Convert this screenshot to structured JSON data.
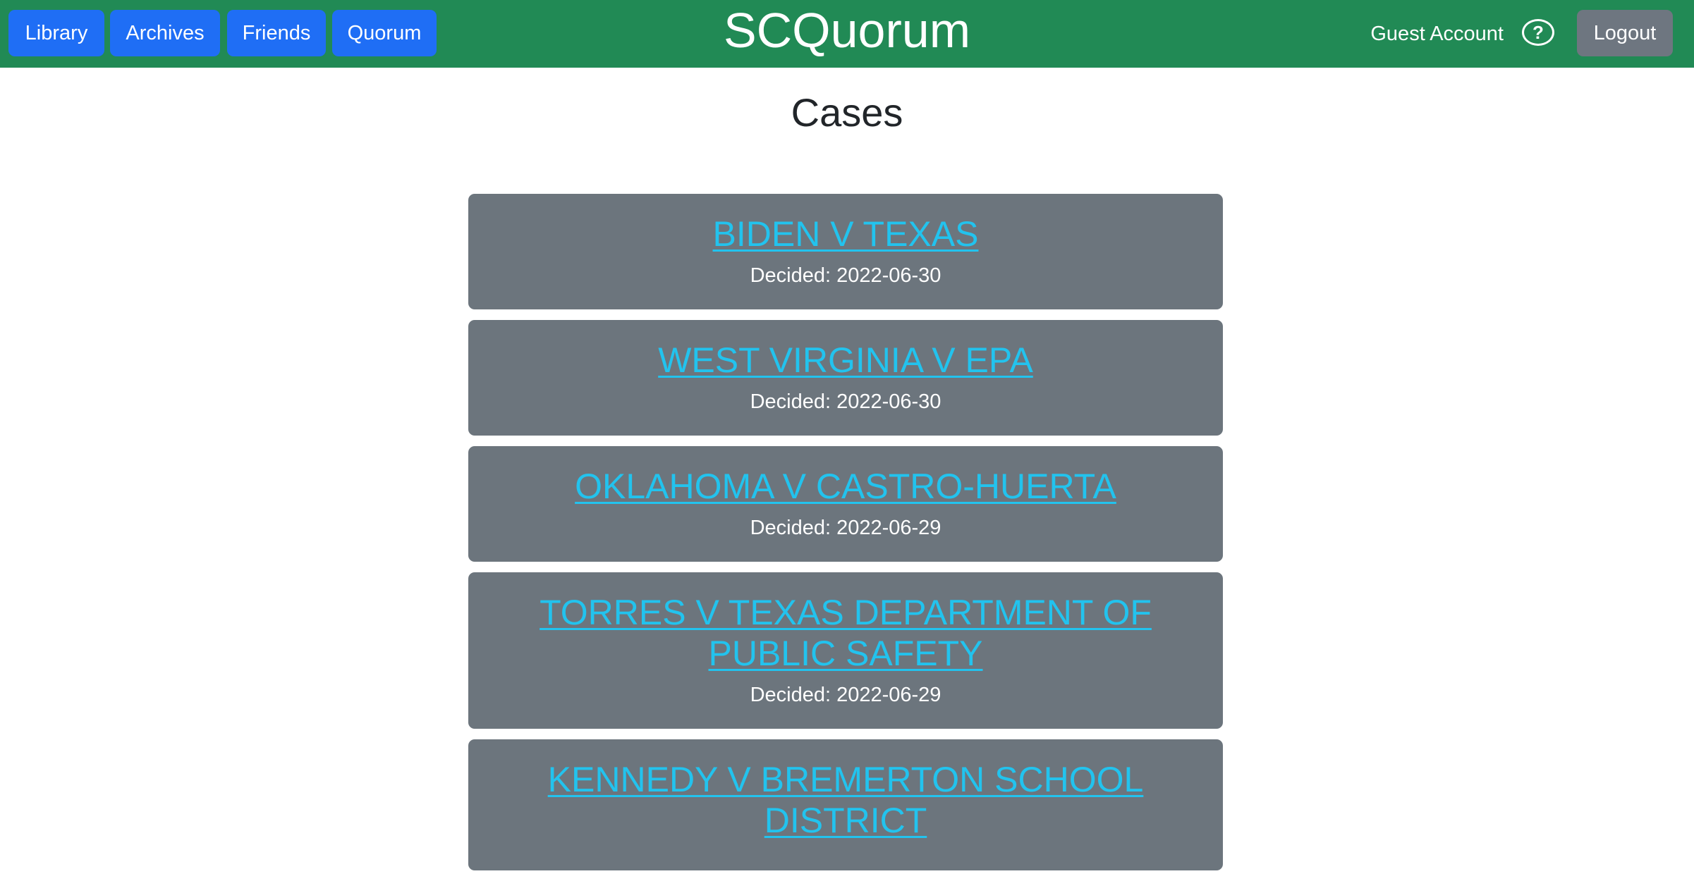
{
  "nav": {
    "buttons": [
      "Library",
      "Archives",
      "Friends",
      "Quorum"
    ],
    "brand": "SCQuorum",
    "account": "Guest Account",
    "help": "?",
    "logout": "Logout"
  },
  "page_title": "Cases",
  "cases": [
    {
      "title": "BIDEN V TEXAS",
      "decided": "Decided: 2022-06-30"
    },
    {
      "title": "WEST VIRGINIA V EPA",
      "decided": "Decided: 2022-06-30"
    },
    {
      "title": "OKLAHOMA V CASTRO-HUERTA",
      "decided": "Decided: 2022-06-29"
    },
    {
      "title": "TORRES V TEXAS DEPARTMENT OF PUBLIC SAFETY",
      "decided": "Decided: 2022-06-29"
    },
    {
      "title": "KENNEDY V BREMERTON SCHOOL DISTRICT",
      "decided": ""
    }
  ],
  "colors": {
    "navbar": "#218a55",
    "nav_button": "#1f6ef5",
    "card": "#6c757d",
    "link": "#22c3ee"
  }
}
